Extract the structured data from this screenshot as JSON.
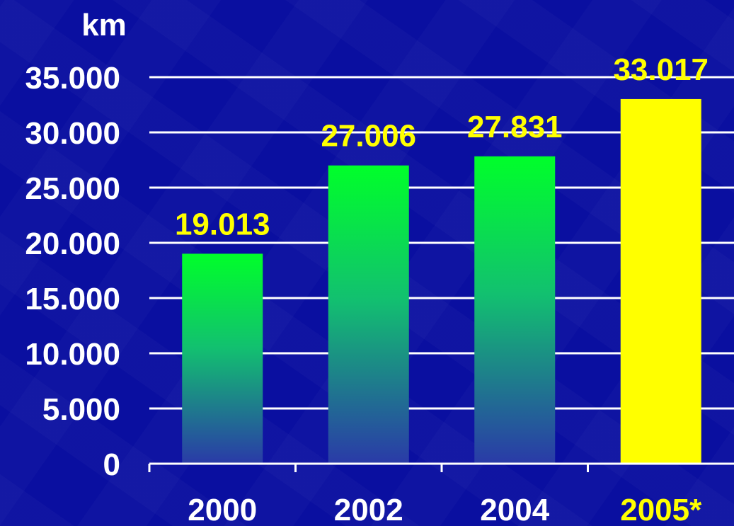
{
  "chart_data": {
    "type": "bar",
    "ylabel": "km",
    "categories": [
      "2000",
      "2002",
      "2004",
      "2005*"
    ],
    "values": [
      19013,
      27006,
      27831,
      33017
    ],
    "value_labels": [
      "19.013",
      "27.006",
      "27.831",
      "33.017"
    ],
    "yticks": [
      0,
      5000,
      10000,
      15000,
      20000,
      25000,
      30000,
      35000
    ],
    "ytick_labels": [
      "0",
      "5.000",
      "10.000",
      "15.000",
      "20.000",
      "25.000",
      "30.000",
      "35.000"
    ],
    "ylim": [
      0,
      35000
    ],
    "grid": true,
    "legend": "none",
    "colors": {
      "background": "#0a0fa0",
      "gradient_top": "#00ff2a",
      "gradient_bottom": "#2a3aa8",
      "highlight": "#ffff00",
      "text": "#ffffff",
      "value_text": "#ffff00"
    },
    "highlight_index": 3
  }
}
